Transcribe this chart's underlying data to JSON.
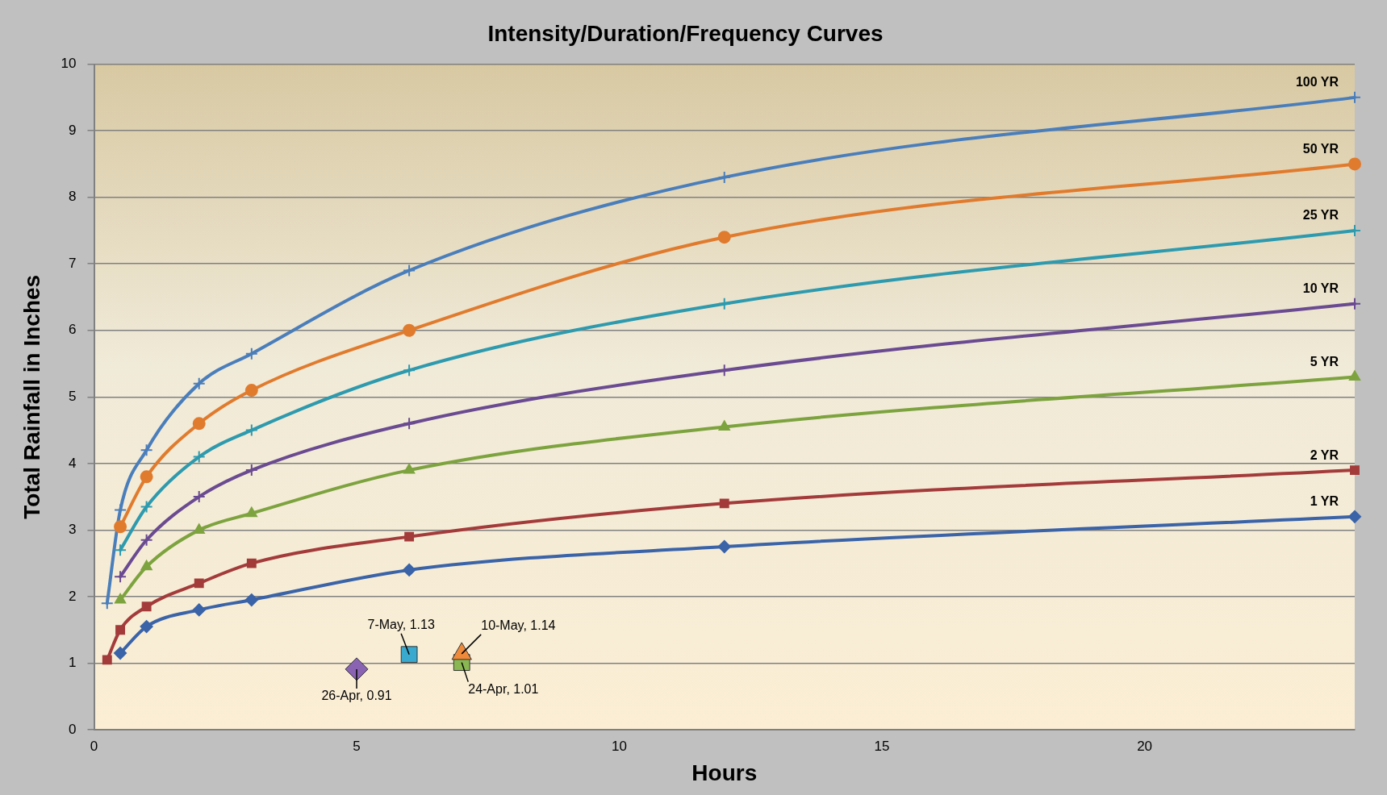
{
  "chart_data": {
    "type": "line",
    "title": "Intensity/Duration/Frequency Curves",
    "xlabel": "Hours",
    "ylabel": "Total Rainfall in Inches",
    "xlim": [
      0,
      24
    ],
    "xticks": [
      0,
      5,
      10,
      15,
      20
    ],
    "ylim": [
      0,
      10
    ],
    "yticks": [
      0,
      1,
      2,
      3,
      4,
      5,
      6,
      7,
      8,
      9,
      10
    ],
    "grid": "y",
    "legend": false,
    "series": [
      {
        "name": "100 YR",
        "color": "#4a7ebb",
        "marker": "cross",
        "x": [
          0.25,
          0.5,
          1,
          2,
          3,
          6,
          12,
          24
        ],
        "values": [
          1.9,
          3.3,
          4.2,
          5.2,
          5.65,
          6.9,
          8.3,
          9.5
        ]
      },
      {
        "name": "50 YR",
        "color": "#e07b2e",
        "marker": "circle",
        "x": [
          0.5,
          1,
          2,
          3,
          6,
          12,
          24
        ],
        "values": [
          3.05,
          3.8,
          4.6,
          5.1,
          6.0,
          7.4,
          8.5
        ]
      },
      {
        "name": "25 YR",
        "color": "#2e9aae",
        "marker": "cross",
        "x": [
          0.5,
          1,
          2,
          3,
          6,
          12,
          24
        ],
        "values": [
          2.7,
          3.35,
          4.1,
          4.5,
          5.4,
          6.4,
          7.5
        ]
      },
      {
        "name": "10 YR",
        "color": "#6a4a91",
        "marker": "cross",
        "x": [
          0.5,
          1,
          2,
          3,
          6,
          12,
          24
        ],
        "values": [
          2.3,
          2.85,
          3.5,
          3.9,
          4.6,
          5.4,
          6.4
        ]
      },
      {
        "name": "5 YR",
        "color": "#7da33f",
        "marker": "triangle",
        "x": [
          0.5,
          1,
          2,
          3,
          6,
          12,
          24
        ],
        "values": [
          1.95,
          2.45,
          3.0,
          3.25,
          3.9,
          4.55,
          5.3
        ]
      },
      {
        "name": "2 YR",
        "color": "#a33b3b",
        "marker": "square",
        "x": [
          0.25,
          0.5,
          1,
          2,
          3,
          6,
          12,
          24
        ],
        "values": [
          1.05,
          1.5,
          1.85,
          2.2,
          2.5,
          2.9,
          3.4,
          3.9
        ]
      },
      {
        "name": "1 YR",
        "color": "#3a63a8",
        "marker": "diamond",
        "x": [
          0.5,
          1,
          2,
          3,
          6,
          12,
          24
        ],
        "values": [
          1.15,
          1.55,
          1.8,
          1.95,
          2.4,
          2.75,
          3.2
        ]
      },
      {
        "type": "scatter",
        "color": "#8a64b3",
        "marker": "diamond",
        "x": [
          5
        ],
        "values": [
          0.91
        ]
      },
      {
        "type": "scatter",
        "color": "#3aa9cf",
        "marker": "square",
        "x": [
          6
        ],
        "values": [
          1.13
        ]
      },
      {
        "type": "scatter",
        "color": "#8bb752",
        "marker": "square",
        "x": [
          7
        ],
        "values": [
          1.01
        ]
      },
      {
        "type": "scatter",
        "color": "#ef8a3a",
        "marker": "triangle",
        "x": [
          7
        ],
        "values": [
          1.14
        ]
      }
    ],
    "annotations": [
      {
        "text": "26-Apr, 0.91",
        "x": 5,
        "y": 0.91
      },
      {
        "text": "7-May, 1.13",
        "x": 6,
        "y": 1.13
      },
      {
        "text": "24-Apr, 1.01",
        "x": 7,
        "y": 1.01
      },
      {
        "text": "10-May, 1.14",
        "x": 7,
        "y": 1.14
      }
    ]
  }
}
